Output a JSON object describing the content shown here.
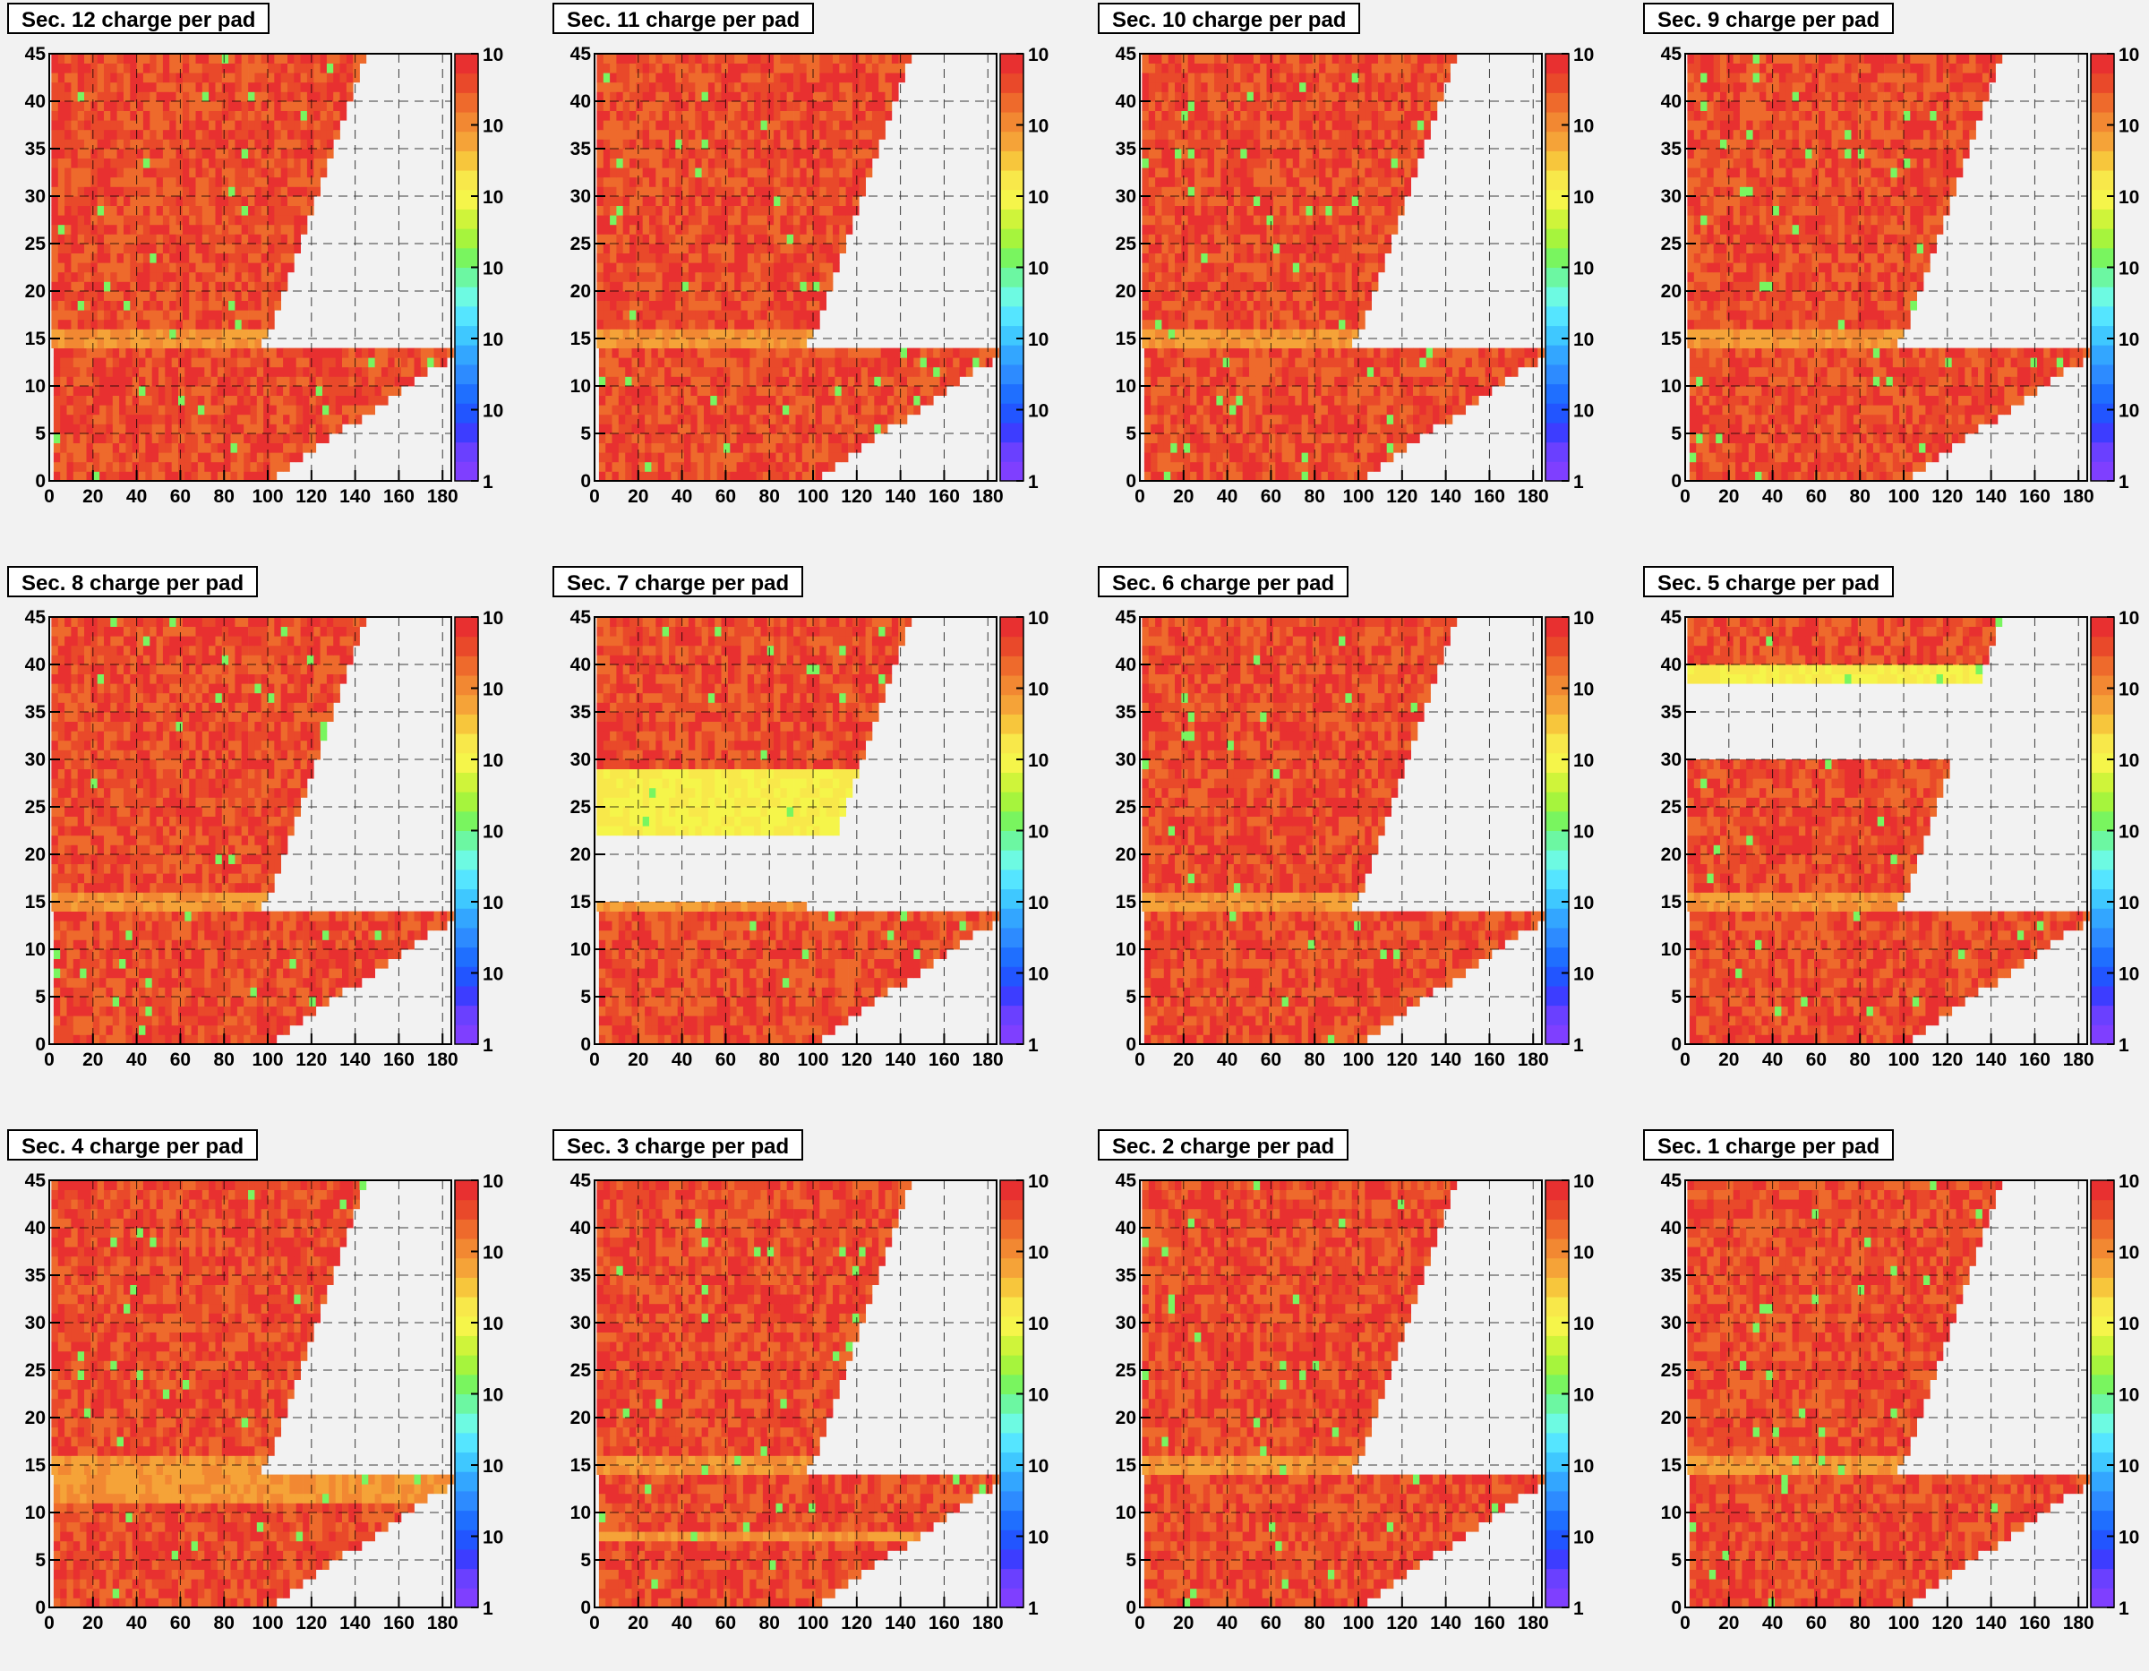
{
  "colors": {
    "background": "#f2f2f2",
    "frame": "#000000",
    "empty": "#f2f2f2",
    "grid": "#000000"
  },
  "colorscale": [
    "#7f3fff",
    "#6a40ff",
    "#3d3dff",
    "#2255ff",
    "#1f6fff",
    "#2d8bff",
    "#33a6ff",
    "#3fc8ff",
    "#55e5ff",
    "#6dfae2",
    "#6cf7a2",
    "#79f55f",
    "#a6f43d",
    "#cff43a",
    "#f5f54a",
    "#f8e84a",
    "#f7c63c",
    "#f5a338",
    "#f28832",
    "#ee6a2c",
    "#e9492a",
    "#e83030"
  ],
  "colorbar_labels": [
    "1",
    "10",
    "10",
    "10",
    "10",
    "10",
    "10"
  ],
  "chart_data": [
    {
      "type": "heatmap",
      "title": "Sec. 12 charge per pad",
      "xlim": [
        0,
        184
      ],
      "ylim": [
        0,
        45
      ],
      "xticks": [
        "0",
        "20",
        "40",
        "60",
        "80",
        "100",
        "120",
        "140",
        "160",
        "180"
      ],
      "yticks": [
        "0",
        "5",
        "10",
        "15",
        "20",
        "25",
        "30",
        "35",
        "40",
        "45"
      ],
      "colorbar": "log",
      "seed": 12,
      "empty_rows": [],
      "hot_rows": [],
      "bright_rows": [
        14,
        15
      ]
    },
    {
      "type": "heatmap",
      "title": "Sec. 11 charge per pad",
      "xlim": [
        0,
        184
      ],
      "ylim": [
        0,
        45
      ],
      "xticks": [
        "0",
        "20",
        "40",
        "60",
        "80",
        "100",
        "120",
        "140",
        "160",
        "180"
      ],
      "yticks": [
        "0",
        "5",
        "10",
        "15",
        "20",
        "25",
        "30",
        "35",
        "40",
        "45"
      ],
      "colorbar": "log",
      "seed": 11,
      "empty_rows": [],
      "hot_rows": [],
      "bright_rows": [
        14,
        15
      ]
    },
    {
      "type": "heatmap",
      "title": "Sec. 10 charge per pad",
      "xlim": [
        0,
        184
      ],
      "ylim": [
        0,
        45
      ],
      "xticks": [
        "0",
        "20",
        "40",
        "60",
        "80",
        "100",
        "120",
        "140",
        "160",
        "180"
      ],
      "yticks": [
        "0",
        "5",
        "10",
        "15",
        "20",
        "25",
        "30",
        "35",
        "40",
        "45"
      ],
      "colorbar": "log",
      "seed": 10,
      "empty_rows": [],
      "hot_rows": [],
      "bright_rows": [
        14,
        15
      ]
    },
    {
      "type": "heatmap",
      "title": "Sec. 9 charge per pad",
      "xlim": [
        0,
        184
      ],
      "ylim": [
        0,
        45
      ],
      "xticks": [
        "0",
        "20",
        "40",
        "60",
        "80",
        "100",
        "120",
        "140",
        "160",
        "180"
      ],
      "yticks": [
        "0",
        "5",
        "10",
        "15",
        "20",
        "25",
        "30",
        "35",
        "40",
        "45"
      ],
      "colorbar": "log",
      "seed": 9,
      "empty_rows": [],
      "hot_rows": [],
      "bright_rows": [
        14,
        15
      ]
    },
    {
      "type": "heatmap",
      "title": "Sec. 8 charge per pad",
      "xlim": [
        0,
        184
      ],
      "ylim": [
        0,
        45
      ],
      "xticks": [
        "0",
        "20",
        "40",
        "60",
        "80",
        "100",
        "120",
        "140",
        "160",
        "180"
      ],
      "yticks": [
        "0",
        "5",
        "10",
        "15",
        "20",
        "25",
        "30",
        "35",
        "40",
        "45"
      ],
      "colorbar": "log",
      "seed": 8,
      "empty_rows": [],
      "hot_rows": [],
      "bright_rows": [
        14,
        15
      ]
    },
    {
      "type": "heatmap",
      "title": "Sec. 7 charge per pad",
      "xlim": [
        0,
        184
      ],
      "ylim": [
        0,
        45
      ],
      "xticks": [
        "0",
        "20",
        "40",
        "60",
        "80",
        "100",
        "120",
        "140",
        "160",
        "180"
      ],
      "yticks": [
        "0",
        "5",
        "10",
        "15",
        "20",
        "25",
        "30",
        "35",
        "40",
        "45"
      ],
      "colorbar": "log",
      "seed": 7,
      "empty_rows": [
        15,
        16,
        17,
        18,
        19,
        20,
        21
      ],
      "hot_rows": [
        22,
        23,
        24,
        25,
        26,
        27,
        28
      ],
      "bright_rows": [
        14,
        15
      ]
    },
    {
      "type": "heatmap",
      "title": "Sec. 6 charge per pad",
      "xlim": [
        0,
        184
      ],
      "ylim": [
        0,
        45
      ],
      "xticks": [
        "0",
        "20",
        "40",
        "60",
        "80",
        "100",
        "120",
        "140",
        "160",
        "180"
      ],
      "yticks": [
        "0",
        "5",
        "10",
        "15",
        "20",
        "25",
        "30",
        "35",
        "40",
        "45"
      ],
      "colorbar": "log",
      "seed": 6,
      "empty_rows": [],
      "hot_rows": [],
      "bright_rows": [
        14,
        15
      ]
    },
    {
      "type": "heatmap",
      "title": "Sec. 5 charge per pad",
      "xlim": [
        0,
        184
      ],
      "ylim": [
        0,
        45
      ],
      "xticks": [
        "0",
        "20",
        "40",
        "60",
        "80",
        "100",
        "120",
        "140",
        "160",
        "180"
      ],
      "yticks": [
        "0",
        "5",
        "10",
        "15",
        "20",
        "25",
        "30",
        "35",
        "40",
        "45"
      ],
      "colorbar": "log",
      "seed": 5,
      "empty_rows": [
        30,
        31,
        32,
        33,
        34,
        35,
        36,
        37
      ],
      "hot_rows": [
        38,
        39
      ],
      "bright_rows": [
        14,
        15
      ]
    },
    {
      "type": "heatmap",
      "title": "Sec. 4 charge per pad",
      "xlim": [
        0,
        184
      ],
      "ylim": [
        0,
        45
      ],
      "xticks": [
        "0",
        "20",
        "40",
        "60",
        "80",
        "100",
        "120",
        "140",
        "160",
        "180"
      ],
      "yticks": [
        "0",
        "5",
        "10",
        "15",
        "20",
        "25",
        "30",
        "35",
        "40",
        "45"
      ],
      "colorbar": "log",
      "seed": 4,
      "empty_rows": [],
      "hot_rows": [],
      "bright_rows": [
        11,
        12,
        13,
        14,
        15
      ]
    },
    {
      "type": "heatmap",
      "title": "Sec. 3 charge per pad",
      "xlim": [
        0,
        184
      ],
      "ylim": [
        0,
        45
      ],
      "xticks": [
        "0",
        "20",
        "40",
        "60",
        "80",
        "100",
        "120",
        "140",
        "160",
        "180"
      ],
      "yticks": [
        "0",
        "5",
        "10",
        "15",
        "20",
        "25",
        "30",
        "35",
        "40",
        "45"
      ],
      "colorbar": "log",
      "seed": 3,
      "empty_rows": [],
      "hot_rows": [],
      "bright_rows": [
        7,
        14,
        15
      ]
    },
    {
      "type": "heatmap",
      "title": "Sec. 2 charge per pad",
      "xlim": [
        0,
        184
      ],
      "ylim": [
        0,
        45
      ],
      "xticks": [
        "0",
        "20",
        "40",
        "60",
        "80",
        "100",
        "120",
        "140",
        "160",
        "180"
      ],
      "yticks": [
        "0",
        "5",
        "10",
        "15",
        "20",
        "25",
        "30",
        "35",
        "40",
        "45"
      ],
      "colorbar": "log",
      "seed": 2,
      "empty_rows": [],
      "hot_rows": [],
      "bright_rows": [
        14,
        15
      ]
    },
    {
      "type": "heatmap",
      "title": "Sec. 1 charge per pad",
      "xlim": [
        0,
        184
      ],
      "ylim": [
        0,
        45
      ],
      "xticks": [
        "0",
        "20",
        "40",
        "60",
        "80",
        "100",
        "120",
        "140",
        "160",
        "180"
      ],
      "yticks": [
        "0",
        "5",
        "10",
        "15",
        "20",
        "25",
        "30",
        "35",
        "40",
        "45"
      ],
      "colorbar": "log",
      "seed": 1,
      "empty_rows": [],
      "hot_rows": [],
      "bright_rows": [
        14,
        15
      ]
    }
  ]
}
